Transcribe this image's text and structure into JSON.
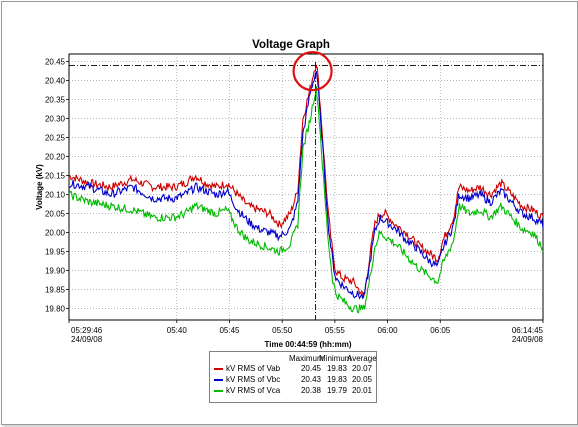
{
  "chart_data": {
    "type": "line",
    "title": "Voltage Graph",
    "xlabel": "Time 00:44:59 (hh:mm)",
    "ylabel": "Voltage (kV)",
    "ylim": [
      19.77,
      20.47
    ],
    "yticks": [
      "20.45",
      "20.40",
      "20.35",
      "20.30",
      "20.25",
      "20.20",
      "20.15",
      "20.10",
      "20.05",
      "20.00",
      "19.95",
      "19.90",
      "19.85",
      "19.80"
    ],
    "xticks": [
      {
        "t": 0,
        "line1": "05:29:46",
        "line2": "24/09/08"
      },
      {
        "t": 10.23,
        "line1": "05:40",
        "line2": ""
      },
      {
        "t": 15.23,
        "line1": "05:45",
        "line2": ""
      },
      {
        "t": 20.23,
        "line1": "05:50",
        "line2": ""
      },
      {
        "t": 25.23,
        "line1": "05:55",
        "line2": ""
      },
      {
        "t": 30.23,
        "line1": "06:00",
        "line2": ""
      },
      {
        "t": 35.23,
        "line1": "06:05",
        "line2": ""
      },
      {
        "t": 44.98,
        "line1": "06:14:45",
        "line2": "24/09/08"
      }
    ],
    "xlim": [
      0,
      44.98
    ],
    "grid": true,
    "reference_line": 20.44,
    "peak_marker_t": 23.4,
    "series": [
      {
        "name": "kV RMS of Vab",
        "color": "#cc0000",
        "max": "20.45",
        "min": "19.83",
        "avg": "20.07",
        "points": [
          [
            0,
            20.15
          ],
          [
            2,
            20.13
          ],
          [
            4,
            20.12
          ],
          [
            6,
            20.14
          ],
          [
            8,
            20.12
          ],
          [
            10,
            20.12
          ],
          [
            11,
            20.13
          ],
          [
            12,
            20.15
          ],
          [
            13,
            20.13
          ],
          [
            14,
            20.12
          ],
          [
            15,
            20.13
          ],
          [
            16,
            20.1
          ],
          [
            17,
            20.07
          ],
          [
            18,
            20.06
          ],
          [
            19,
            20.05
          ],
          [
            20,
            20.02
          ],
          [
            21,
            20.05
          ],
          [
            21.7,
            20.11
          ],
          [
            22.2,
            20.3
          ],
          [
            22.9,
            20.38
          ],
          [
            23.2,
            20.42
          ],
          [
            23.5,
            20.45
          ],
          [
            23.8,
            20.35
          ],
          [
            24.2,
            20.2
          ],
          [
            24.6,
            20.05
          ],
          [
            25,
            19.95
          ],
          [
            25.3,
            19.9
          ],
          [
            26,
            19.88
          ],
          [
            27,
            19.87
          ],
          [
            28,
            19.83
          ],
          [
            28.5,
            19.93
          ],
          [
            29,
            20.02
          ],
          [
            29.5,
            20.05
          ],
          [
            30,
            20.05
          ],
          [
            31,
            20.02
          ],
          [
            32,
            20.0
          ],
          [
            33,
            19.97
          ],
          [
            34,
            19.95
          ],
          [
            35,
            19.93
          ],
          [
            35.5,
            19.98
          ],
          [
            36,
            20.01
          ],
          [
            36.5,
            20.04
          ],
          [
            37,
            20.12
          ],
          [
            38,
            20.11
          ],
          [
            39,
            20.12
          ],
          [
            40,
            20.1
          ],
          [
            41,
            20.13
          ],
          [
            42,
            20.1
          ],
          [
            43,
            20.07
          ],
          [
            44,
            20.06
          ],
          [
            44.98,
            20.04
          ]
        ]
      },
      {
        "name": "kV RMS of Vbc",
        "color": "#0000cc",
        "max": "20.43",
        "min": "19.83",
        "avg": "20.05",
        "points": [
          [
            0,
            20.13
          ],
          [
            2,
            20.12
          ],
          [
            4,
            20.1
          ],
          [
            6,
            20.12
          ],
          [
            8,
            20.09
          ],
          [
            10,
            20.09
          ],
          [
            11,
            20.1
          ],
          [
            12,
            20.12
          ],
          [
            13,
            20.11
          ],
          [
            14,
            20.1
          ],
          [
            15,
            20.11
          ],
          [
            16,
            20.06
          ],
          [
            17,
            20.03
          ],
          [
            18,
            20.01
          ],
          [
            19,
            20.0
          ],
          [
            20,
            19.99
          ],
          [
            21,
            20.01
          ],
          [
            21.7,
            20.08
          ],
          [
            22.2,
            20.26
          ],
          [
            22.9,
            20.37
          ],
          [
            23.2,
            20.4
          ],
          [
            23.5,
            20.43
          ],
          [
            23.8,
            20.32
          ],
          [
            24.2,
            20.18
          ],
          [
            24.6,
            20.02
          ],
          [
            25,
            19.93
          ],
          [
            25.3,
            19.88
          ],
          [
            26,
            19.86
          ],
          [
            27,
            19.84
          ],
          [
            28,
            19.83
          ],
          [
            28.5,
            19.91
          ],
          [
            29,
            20.0
          ],
          [
            29.5,
            20.04
          ],
          [
            30,
            20.03
          ],
          [
            31,
            20.01
          ],
          [
            32,
            19.98
          ],
          [
            33,
            19.96
          ],
          [
            34,
            19.93
          ],
          [
            35,
            19.91
          ],
          [
            35.5,
            19.96
          ],
          [
            36,
            19.99
          ],
          [
            36.5,
            20.02
          ],
          [
            37,
            20.1
          ],
          [
            38,
            20.09
          ],
          [
            39,
            20.1
          ],
          [
            40,
            20.08
          ],
          [
            41,
            20.11
          ],
          [
            42,
            20.08
          ],
          [
            43,
            20.05
          ],
          [
            44,
            20.04
          ],
          [
            44.98,
            20.02
          ]
        ]
      },
      {
        "name": "kV RMS of Vca",
        "color": "#00bb00",
        "max": "20.38",
        "min": "19.79",
        "avg": "20.01",
        "points": [
          [
            0,
            20.1
          ],
          [
            2,
            20.08
          ],
          [
            4,
            20.07
          ],
          [
            6,
            20.06
          ],
          [
            8,
            20.04
          ],
          [
            10,
            20.04
          ],
          [
            11,
            20.05
          ],
          [
            12,
            20.07
          ],
          [
            13,
            20.06
          ],
          [
            14,
            20.05
          ],
          [
            15,
            20.06
          ],
          [
            16,
            20.01
          ],
          [
            17,
            19.98
          ],
          [
            18,
            19.97
          ],
          [
            19,
            19.96
          ],
          [
            20,
            19.95
          ],
          [
            21,
            19.97
          ],
          [
            21.7,
            20.02
          ],
          [
            22.2,
            20.22
          ],
          [
            22.9,
            20.3
          ],
          [
            23.2,
            20.35
          ],
          [
            23.5,
            20.38
          ],
          [
            23.8,
            20.28
          ],
          [
            24.2,
            20.12
          ],
          [
            24.6,
            19.98
          ],
          [
            25,
            19.88
          ],
          [
            25.3,
            19.84
          ],
          [
            26,
            19.82
          ],
          [
            27,
            19.8
          ],
          [
            28,
            19.8
          ],
          [
            28.5,
            19.87
          ],
          [
            29,
            19.96
          ],
          [
            29.5,
            20.0
          ],
          [
            30,
            19.99
          ],
          [
            31,
            19.97
          ],
          [
            32,
            19.94
          ],
          [
            33,
            19.91
          ],
          [
            34,
            19.89
          ],
          [
            35,
            19.87
          ],
          [
            35.5,
            19.92
          ],
          [
            36,
            19.95
          ],
          [
            36.5,
            19.98
          ],
          [
            37,
            20.07
          ],
          [
            38,
            20.05
          ],
          [
            39,
            20.06
          ],
          [
            40,
            20.04
          ],
          [
            41,
            20.07
          ],
          [
            42,
            20.04
          ],
          [
            43,
            20.01
          ],
          [
            44,
            20.0
          ],
          [
            44.98,
            19.96
          ]
        ]
      }
    ]
  },
  "legend": {
    "headers": {
      "max": "Maximum",
      "min": "Minimum",
      "avg": "Average"
    }
  }
}
